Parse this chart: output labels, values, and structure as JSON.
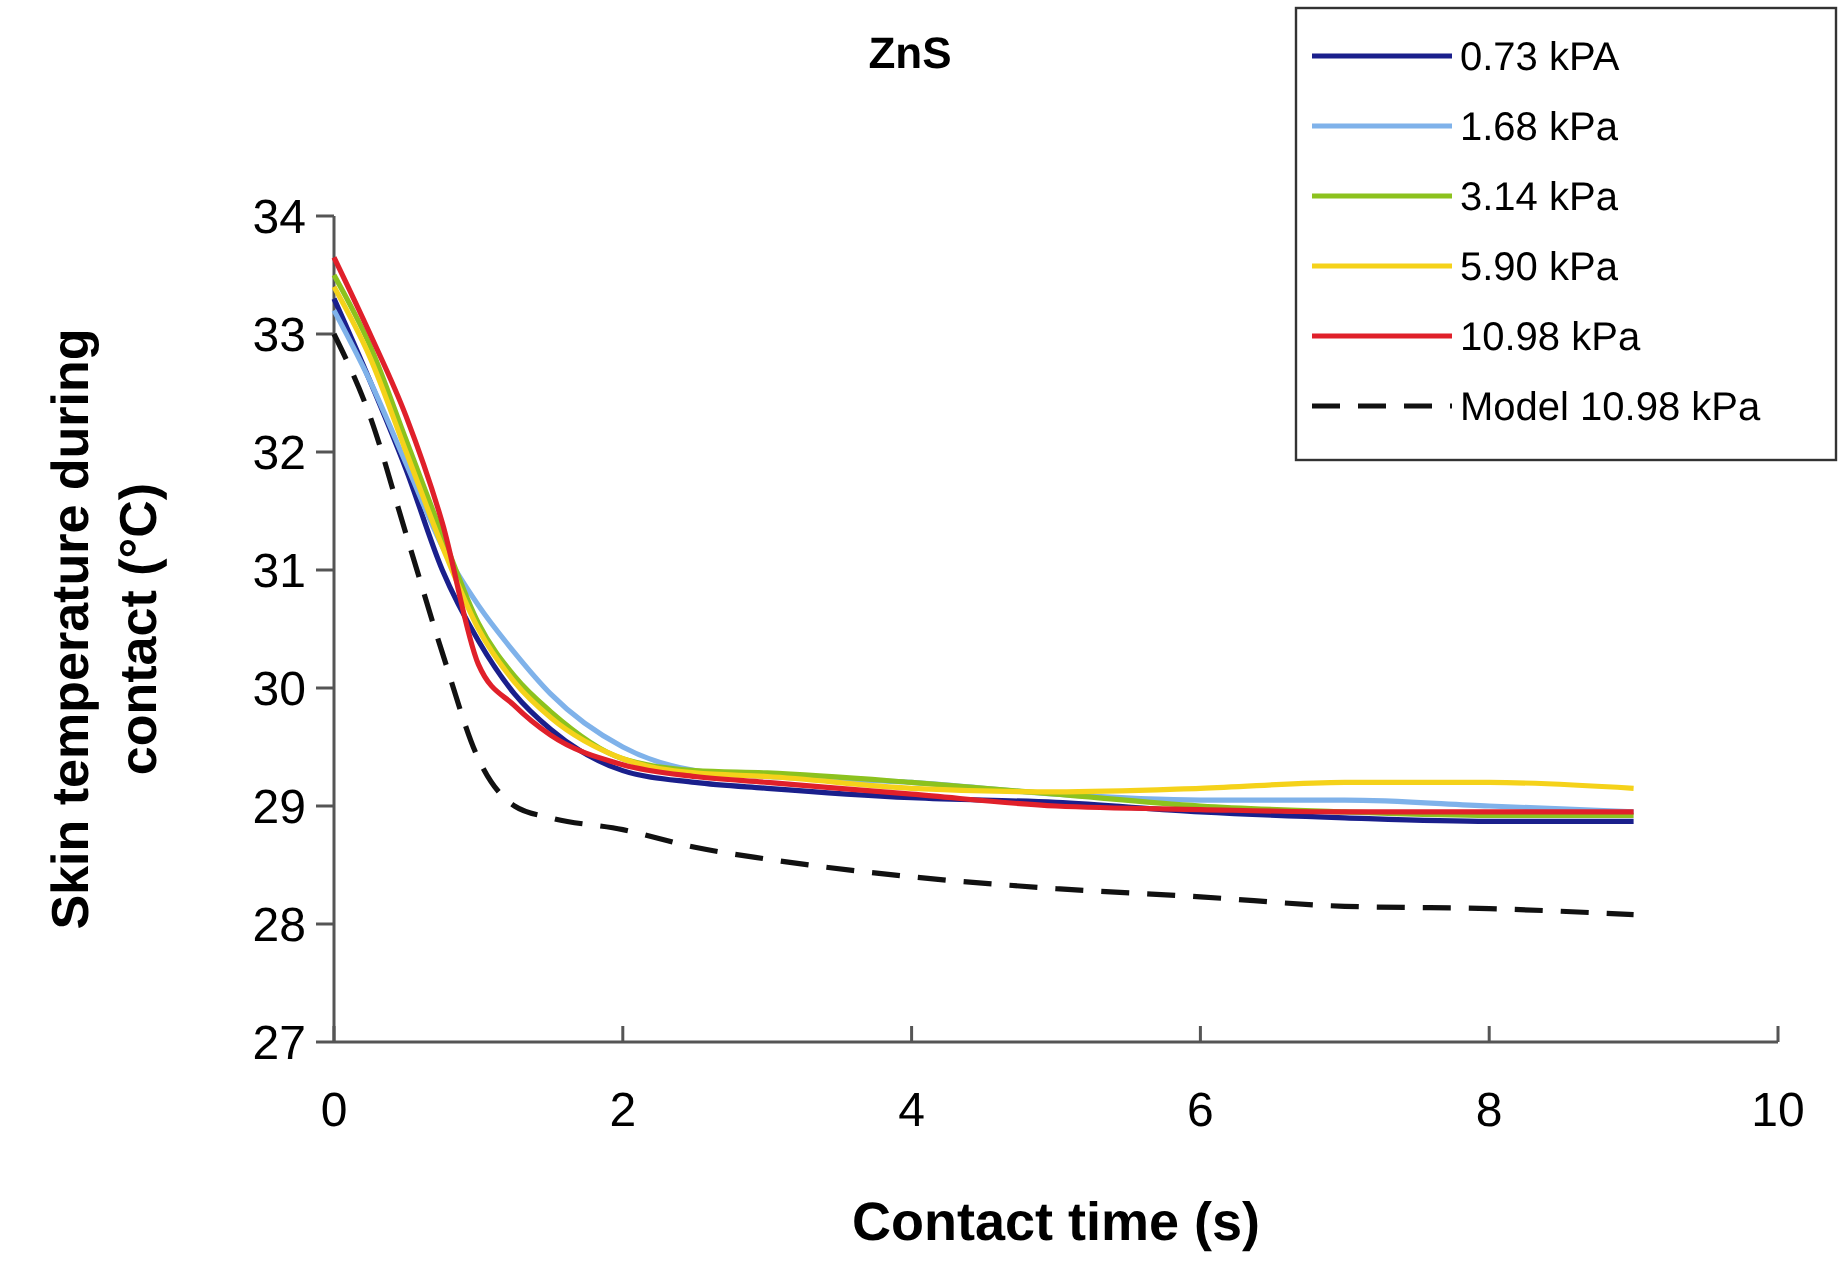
{
  "chart_data": {
    "type": "line",
    "title": "ZnS",
    "xlabel": "Contact time (s)",
    "ylabel": "Skin temperature during\ncontact (°C)",
    "x": [
      0,
      0.25,
      0.5,
      0.75,
      1,
      1.25,
      1.5,
      2,
      2.5,
      3,
      4,
      5,
      6,
      7,
      8,
      9
    ],
    "xlim": [
      0,
      10
    ],
    "xticks": [
      0,
      2,
      4,
      6,
      8,
      10
    ],
    "ylim": [
      27,
      34
    ],
    "yticks": [
      27,
      28,
      29,
      30,
      31,
      32,
      33,
      34
    ],
    "grid": false,
    "legend": "top right",
    "marker": "none",
    "series": [
      {
        "name": "0.73 kPA",
        "color": "#1a1f8c",
        "values": [
          33.3,
          32.6,
          31.85,
          31.0,
          30.4,
          29.95,
          29.65,
          29.3,
          29.2,
          29.15,
          29.07,
          29.03,
          28.95,
          28.9,
          28.87,
          28.87
        ]
      },
      {
        "name": "1.68 kPa",
        "color": "#7fb2ea",
        "values": [
          33.2,
          32.6,
          31.9,
          31.2,
          30.7,
          30.3,
          29.95,
          29.5,
          29.3,
          29.25,
          29.2,
          29.1,
          29.05,
          29.05,
          29.0,
          28.95
        ]
      },
      {
        "name": "3.14 kPa",
        "color": "#8cc21e",
        "values": [
          33.5,
          32.9,
          32.1,
          31.3,
          30.55,
          30.1,
          29.8,
          29.4,
          29.3,
          29.28,
          29.2,
          29.1,
          29.0,
          28.95,
          28.92,
          28.92
        ]
      },
      {
        "name": "5.90 kPa",
        "color": "#f5d21a",
        "values": [
          33.4,
          32.8,
          32.0,
          31.2,
          30.5,
          30.05,
          29.75,
          29.4,
          29.28,
          29.25,
          29.15,
          29.12,
          29.15,
          29.2,
          29.2,
          29.15
        ]
      },
      {
        "name": "10.98 kPa",
        "color": "#e0202a",
        "values": [
          33.65,
          33.0,
          32.3,
          31.4,
          30.2,
          29.85,
          29.6,
          29.35,
          29.25,
          29.2,
          29.1,
          29.0,
          28.97,
          28.95,
          28.95,
          28.95
        ]
      },
      {
        "name": "Model 10.98 kPa",
        "color": "#111111",
        "line_style": "dashed",
        "values": [
          33.0,
          32.3,
          31.3,
          30.3,
          29.4,
          29.0,
          28.9,
          28.8,
          28.65,
          28.55,
          28.4,
          28.3,
          28.23,
          28.15,
          28.13,
          28.08
        ]
      }
    ]
  }
}
